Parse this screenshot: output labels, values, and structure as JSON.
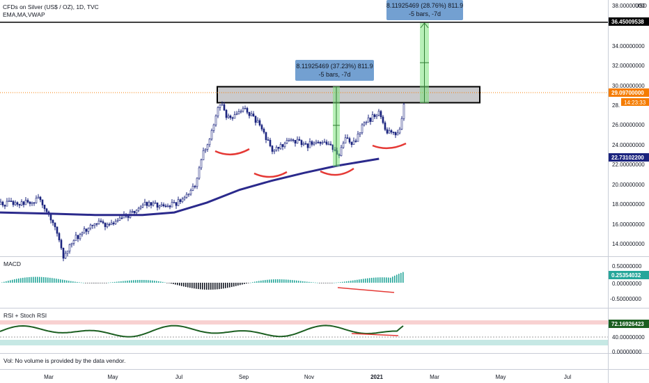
{
  "header": {
    "symbol": "CFDs on Silver (US$ / OZ), 1D, TVC",
    "indicators": "EMA,MA,VWAP",
    "currency": "USD"
  },
  "panes": {
    "macd_title": "MACD",
    "rsi_title": "RSI + Stoch RSI",
    "volume_note": "Vol: No volume is provided by the data vendor."
  },
  "measurements": [
    {
      "line1": "8.11925469 (37.23%) 811.9",
      "line2": "-5 bars, -7d"
    },
    {
      "line1": "8.11925469 (28.76%) 811.9",
      "line2": "-5 bars, -7d"
    }
  ],
  "price_badges": {
    "target": "36.45009538",
    "last": "29.09700000",
    "countdown": "14:23:33",
    "ma": "22.73102200",
    "macd": "0.25354032",
    "rsi": "72.16926423"
  },
  "colors": {
    "up_candle": "#ffffff",
    "down_candle": "#1a237e",
    "moving_average": "#2b2a8c",
    "zone_fill": "#9e9ea3",
    "projection_fill": "#7ee37e",
    "annotation": "#e53935",
    "histogram_up": "#26a69a",
    "histogram_down": "#131722",
    "rsi_line": "#1b5e20",
    "badge_last": "#f57c00",
    "badge_ma": "#1a237e",
    "badge_macd": "#26a69a",
    "badge_rsi": "#1b5e20",
    "measure_box": "#5b8fc9"
  },
  "chart_data": {
    "type": "candlestick",
    "price_axis": {
      "ticks": [
        "38.00000000",
        "34.00000000",
        "32.00000000",
        "30.00000000",
        "28.",
        "26.00000000",
        "24.00000000",
        "22.00000000",
        "20.00000000",
        "18.00000000",
        "16.00000000",
        "14.00000000"
      ],
      "ylim": [
        12.8,
        38.2
      ]
    },
    "time_axis": {
      "labels": [
        "Mar",
        "May",
        "Jul",
        "Sep",
        "Nov",
        "2021",
        "Mar",
        "May",
        "Jul"
      ]
    },
    "macd_axis": {
      "ticks": [
        "0.50000000",
        "0.00000000",
        "-0.50000000"
      ]
    },
    "rsi_axis": {
      "ticks": [
        "40.00000000",
        "0.00000000"
      ]
    },
    "moving_average": {
      "label": "MA",
      "points": [
        [
          "2020-02-01",
          17.3
        ],
        [
          "2020-03-15",
          17.2
        ],
        [
          "2020-05-01",
          17.05
        ],
        [
          "2020-06-15",
          17.05
        ],
        [
          "2020-07-15",
          17.3
        ],
        [
          "2020-08-15",
          18.3
        ],
        [
          "2020-09-15",
          19.6
        ],
        [
          "2020-10-15",
          20.5
        ],
        [
          "2020-11-15",
          21.3
        ],
        [
          "2020-12-15",
          22.0
        ],
        [
          "2021-01-25",
          22.73
        ]
      ]
    },
    "resistance_zone": {
      "low": 28.2,
      "high": 29.95
    },
    "projection": {
      "from": 28.33,
      "to": 36.45,
      "mid": 32.3
    },
    "last_price": 29.097
  }
}
